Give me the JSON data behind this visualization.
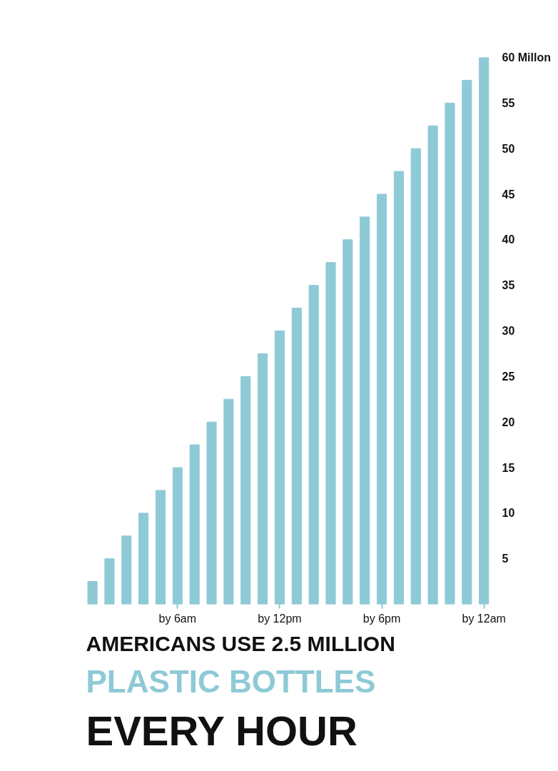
{
  "chart_data": {
    "type": "bar",
    "title": "AMERICANS USE 2.5 MILLION",
    "subtitle": "PLASTIC BOTTLES",
    "annotations": [
      "EVERY HOUR"
    ],
    "categories": [
      null,
      null,
      null,
      null,
      null,
      "by 6am",
      null,
      null,
      null,
      null,
      null,
      "by 12pm",
      null,
      null,
      null,
      null,
      null,
      "by 6pm",
      null,
      null,
      null,
      null,
      null,
      "by 12am"
    ],
    "values": [
      2.5,
      5,
      7.5,
      10,
      12.5,
      15,
      17.5,
      20,
      22.5,
      25,
      27.5,
      30,
      32.5,
      35,
      37.5,
      40,
      42.5,
      45,
      47.5,
      50,
      52.5,
      55,
      57.5,
      60
    ],
    "color": "#8ecad6",
    "ylim": [
      0,
      60
    ],
    "yticks": [
      5,
      10,
      15,
      20,
      25,
      30,
      35,
      40,
      45,
      50,
      55,
      {
        "value": 60,
        "label": "60 Millon"
      }
    ],
    "grid": false
  }
}
